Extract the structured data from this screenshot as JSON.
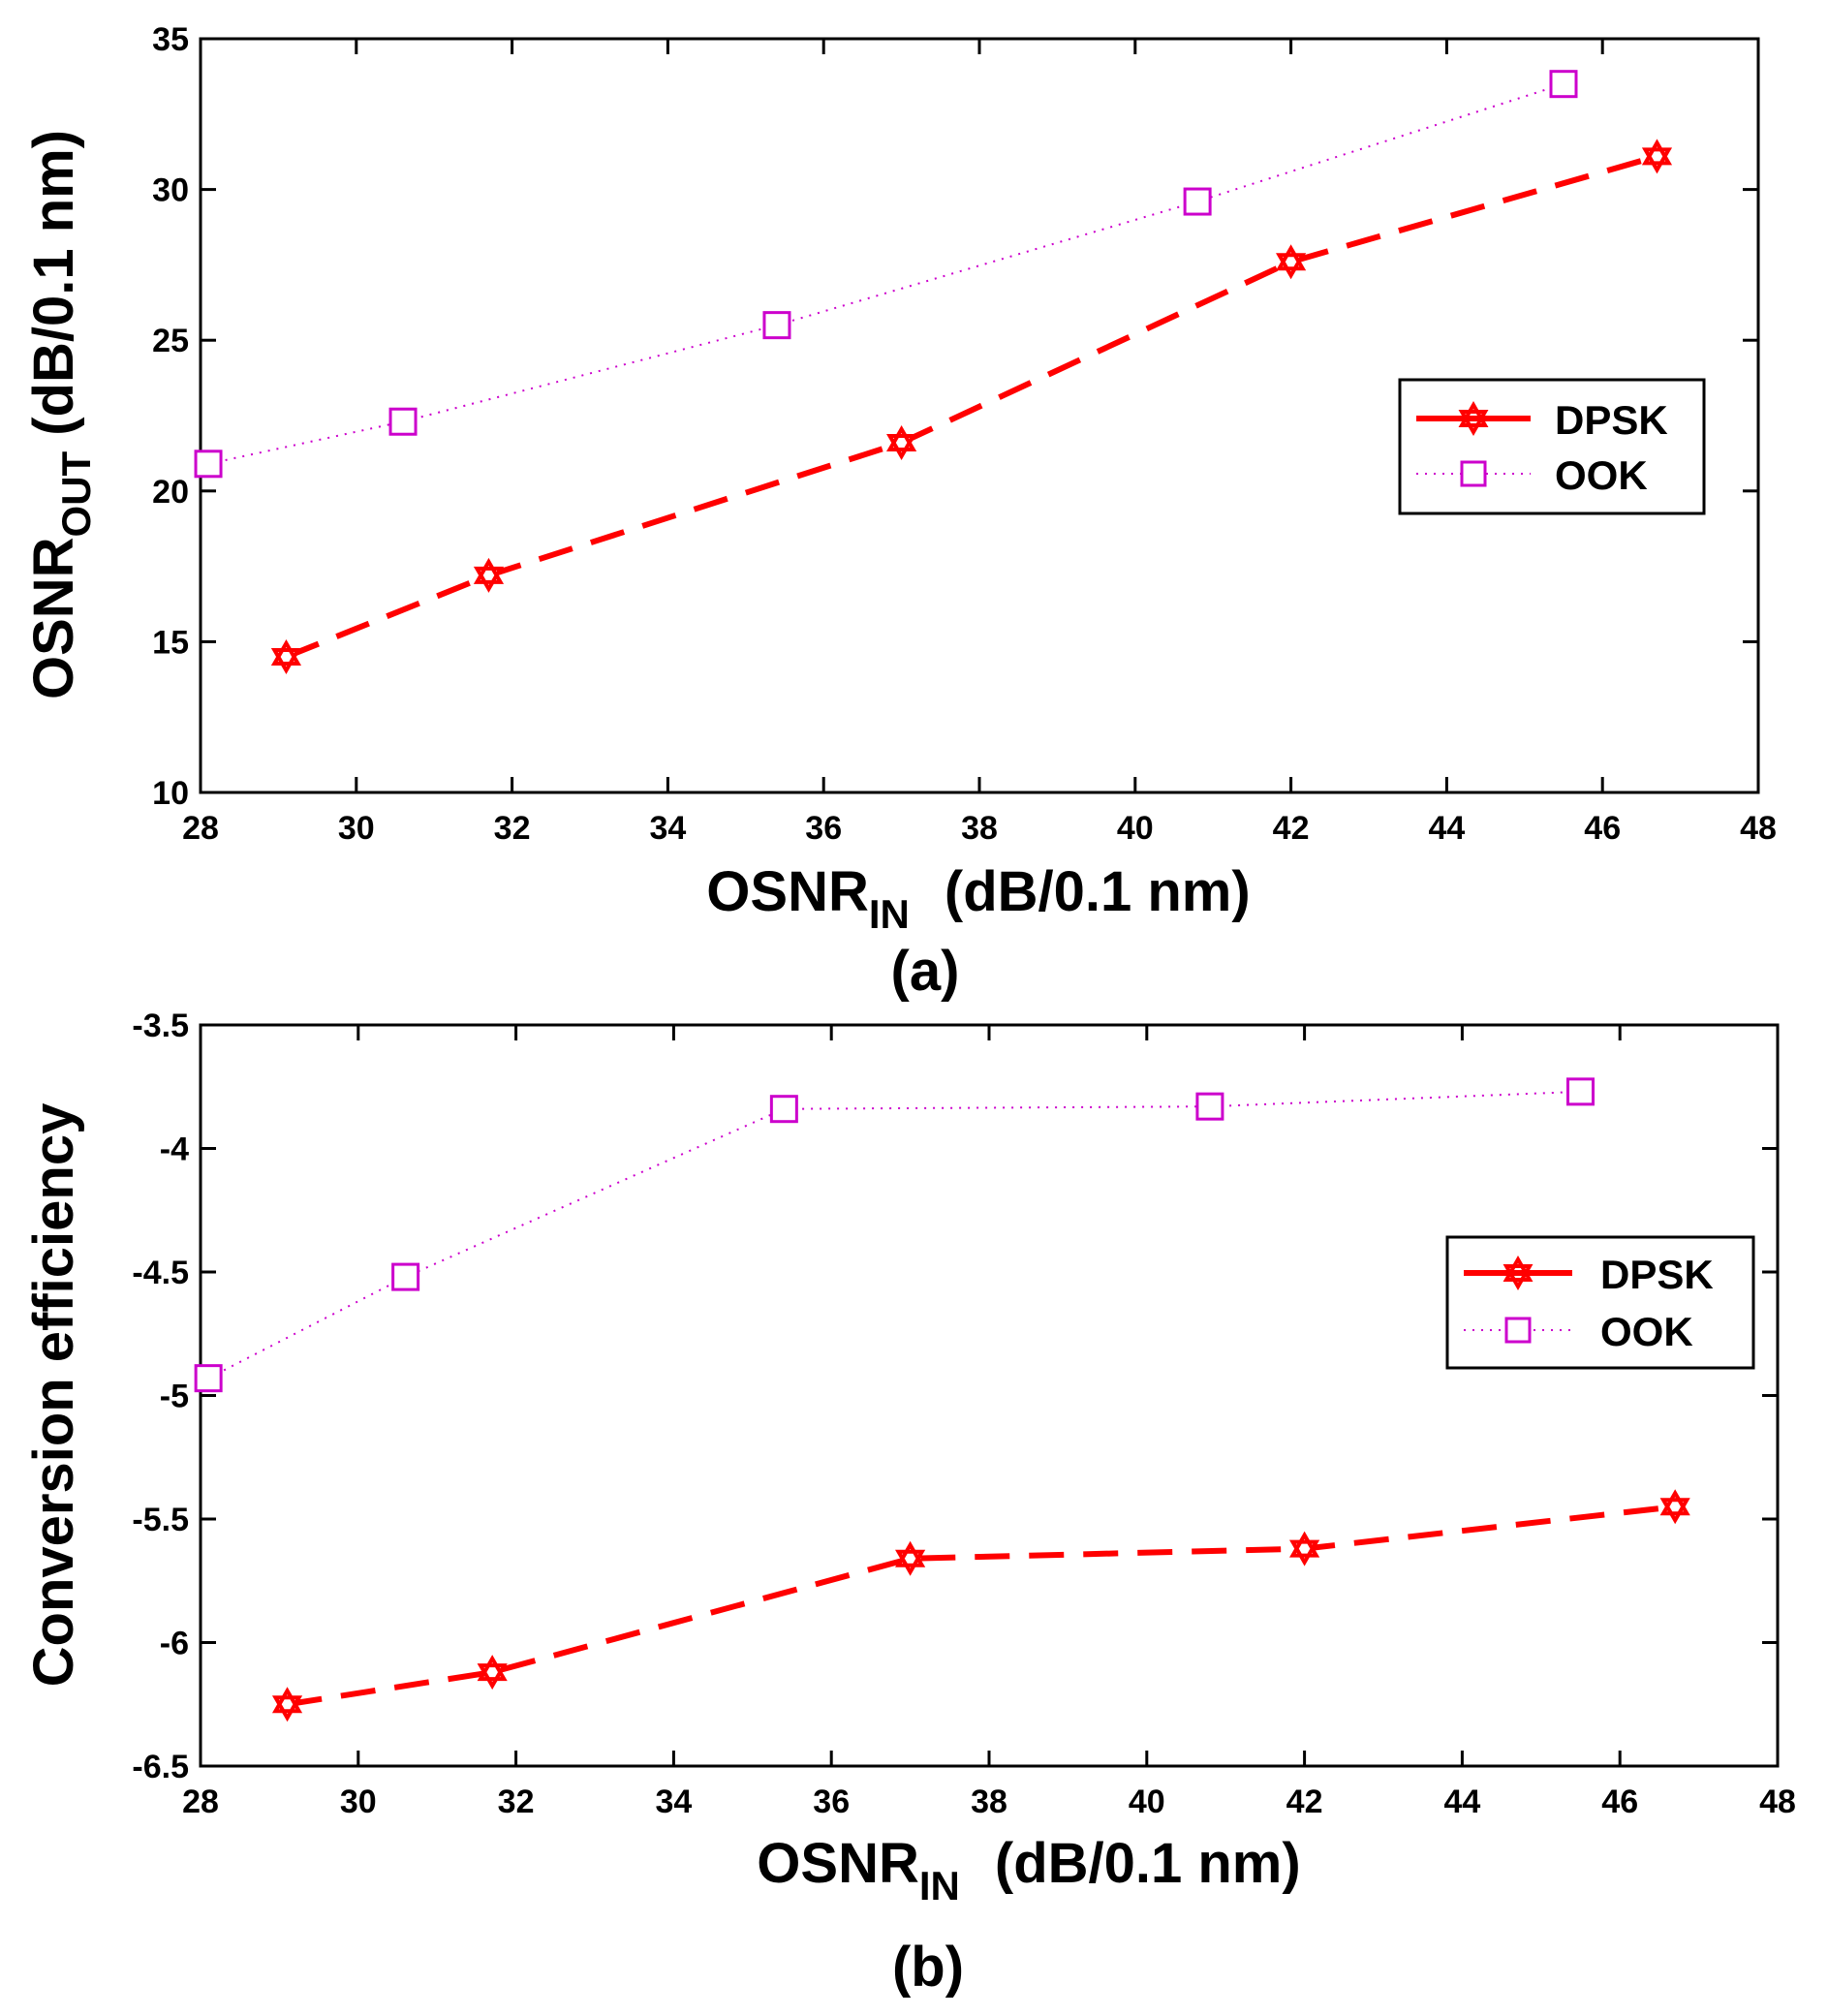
{
  "chart_data": [
    {
      "type": "line",
      "panel_label": "(a)",
      "xlabel_main": "OSNR",
      "xlabel_sub": "IN",
      "xlabel_units": "(dB/0.1 nm)",
      "ylabel_main": "OSNR",
      "ylabel_sub": "OUT",
      "ylabel_units": "(dB/0.1 nm)",
      "xlim": [
        28,
        48
      ],
      "ylim": [
        10,
        35
      ],
      "xticks": [
        28,
        30,
        32,
        34,
        36,
        38,
        40,
        42,
        44,
        46,
        48
      ],
      "yticks": [
        10,
        15,
        20,
        25,
        30,
        35
      ],
      "legend_position": "right",
      "series": [
        {
          "name": "DPSK",
          "style": "dashed",
          "marker": "hexagram",
          "color": "#ff0000",
          "x": [
            29.1,
            31.7,
            37.0,
            42.0,
            46.7
          ],
          "y": [
            14.5,
            17.2,
            21.6,
            27.6,
            31.1
          ]
        },
        {
          "name": "OOK",
          "style": "dotted",
          "marker": "square",
          "color": "#cc00cc",
          "x": [
            28.1,
            30.6,
            35.4,
            40.8,
            45.5
          ],
          "y": [
            20.9,
            22.3,
            25.5,
            29.6,
            33.5
          ]
        }
      ]
    },
    {
      "type": "line",
      "panel_label": "(b)",
      "xlabel_main": "OSNR",
      "xlabel_sub": "IN",
      "xlabel_units": "(dB/0.1 nm)",
      "ylabel_main": "Conversion efficiency",
      "xlim": [
        28,
        48
      ],
      "ylim": [
        -6.5,
        -3.5
      ],
      "xticks": [
        28,
        30,
        32,
        34,
        36,
        38,
        40,
        42,
        44,
        46,
        48
      ],
      "yticks": [
        -6.5,
        -6,
        -5.5,
        -5,
        -4.5,
        -4,
        -3.5
      ],
      "legend_position": "right",
      "series": [
        {
          "name": "DPSK",
          "style": "dashed",
          "marker": "hexagram",
          "color": "#ff0000",
          "x": [
            29.1,
            31.7,
            37.0,
            42.0,
            46.7
          ],
          "y": [
            -6.25,
            -6.12,
            -5.66,
            -5.62,
            -5.45
          ]
        },
        {
          "name": "OOK",
          "style": "dotted",
          "marker": "square",
          "color": "#cc00cc",
          "x": [
            28.1,
            30.6,
            35.4,
            40.8,
            45.5
          ],
          "y": [
            -4.93,
            -4.52,
            -3.84,
            -3.83,
            -3.77
          ]
        }
      ]
    }
  ]
}
